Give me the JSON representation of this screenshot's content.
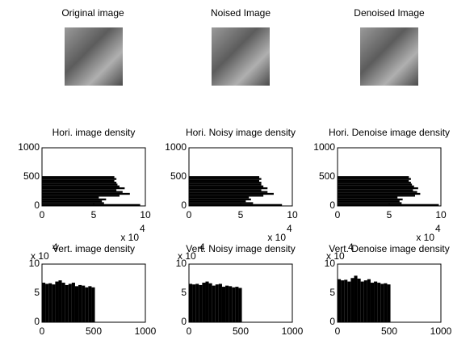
{
  "images": [
    {
      "title": "Original image"
    },
    {
      "title": "Noised Image"
    },
    {
      "title": "Denoised Image"
    }
  ],
  "chart_data": [
    {
      "type": "area",
      "orientation": "horizontal",
      "title": "Hori. image density",
      "color": "#000000",
      "x": [
        0,
        32,
        64,
        96,
        128,
        160,
        192,
        224,
        256,
        288,
        320,
        352,
        384,
        416,
        448,
        480
      ],
      "values": [
        95000,
        60000,
        58000,
        62000,
        55000,
        75000,
        85000,
        78000,
        72000,
        80000,
        75000,
        73000,
        72000,
        70000,
        72000,
        70000
      ],
      "xlim": [
        0,
        100000
      ],
      "xticks": [
        0,
        {
          "value": 50000,
          "label": "5"
        },
        {
          "value": 100000,
          "label": "10"
        }
      ],
      "ylim": [
        0,
        1000
      ],
      "yticks": [
        0,
        500,
        1000
      ],
      "multiplier": "x 10",
      "exponent": "4"
    },
    {
      "type": "area",
      "orientation": "horizontal",
      "title": "Hori. Noisy image density",
      "color": "#000000",
      "x": [
        0,
        32,
        64,
        96,
        128,
        160,
        192,
        224,
        256,
        288,
        320,
        352,
        384,
        416,
        448,
        480
      ],
      "values": [
        90000,
        62000,
        55000,
        60000,
        58000,
        72000,
        82000,
        76000,
        70000,
        76000,
        72000,
        70000,
        70000,
        68000,
        70000,
        68000
      ],
      "xlim": [
        0,
        100000
      ],
      "xticks": [
        0,
        {
          "value": 50000,
          "label": "5"
        },
        {
          "value": 100000,
          "label": "10"
        }
      ],
      "ylim": [
        0,
        1000
      ],
      "yticks": [
        0,
        500,
        1000
      ],
      "multiplier": "x 10",
      "exponent": "4"
    },
    {
      "type": "area",
      "orientation": "horizontal",
      "title": "Hori. Denoise image density",
      "color": "#000000",
      "x": [
        0,
        32,
        64,
        96,
        128,
        160,
        192,
        224,
        256,
        288,
        320,
        352,
        384,
        416,
        448,
        480
      ],
      "values": [
        98000,
        62000,
        60000,
        63000,
        58000,
        75000,
        80000,
        77000,
        73000,
        78000,
        74000,
        72000,
        71000,
        69000,
        71000,
        69000
      ],
      "xlim": [
        0,
        100000
      ],
      "xticks": [
        0,
        {
          "value": 50000,
          "label": "5"
        },
        {
          "value": 100000,
          "label": "10"
        }
      ],
      "ylim": [
        0,
        1000
      ],
      "yticks": [
        0,
        500,
        1000
      ],
      "multiplier": "x 10",
      "exponent": "4"
    },
    {
      "type": "area",
      "orientation": "vertical",
      "title": "Vert. image density",
      "color": "#000000",
      "x": [
        0,
        32,
        64,
        96,
        128,
        160,
        192,
        224,
        256,
        288,
        320,
        352,
        384,
        416,
        448,
        480
      ],
      "values": [
        68000,
        66000,
        67000,
        65000,
        70000,
        72000,
        68000,
        64000,
        66000,
        68000,
        62000,
        64000,
        63000,
        60000,
        62000,
        60000
      ],
      "xlim": [
        0,
        1000
      ],
      "xticks": [
        0,
        500,
        1000
      ],
      "ylim": [
        0,
        100000
      ],
      "yticks": [
        0,
        {
          "value": 50000,
          "label": "5"
        },
        {
          "value": 100000,
          "label": "10"
        }
      ],
      "multiplier": "x 10",
      "exponent": "4"
    },
    {
      "type": "area",
      "orientation": "vertical",
      "title": "Vert. Noisy image density",
      "color": "#000000",
      "x": [
        0,
        32,
        64,
        96,
        128,
        160,
        192,
        224,
        256,
        288,
        320,
        352,
        384,
        416,
        448,
        480
      ],
      "values": [
        66000,
        65000,
        66000,
        64000,
        68000,
        70000,
        67000,
        63000,
        65000,
        66000,
        61000,
        63000,
        62000,
        60000,
        61000,
        59000
      ],
      "xlim": [
        0,
        1000
      ],
      "xticks": [
        0,
        500,
        1000
      ],
      "ylim": [
        0,
        100000
      ],
      "yticks": [
        0,
        {
          "value": 50000,
          "label": "5"
        },
        {
          "value": 100000,
          "label": "10"
        }
      ],
      "multiplier": "x 10",
      "exponent": "4"
    },
    {
      "type": "area",
      "orientation": "vertical",
      "title": "Vert. Denoise image density",
      "color": "#000000",
      "x": [
        0,
        32,
        64,
        96,
        128,
        160,
        192,
        224,
        256,
        288,
        320,
        352,
        384,
        416,
        448,
        480
      ],
      "values": [
        74000,
        72000,
        73000,
        70000,
        76000,
        80000,
        75000,
        70000,
        72000,
        74000,
        68000,
        70000,
        68000,
        66000,
        67000,
        65000
      ],
      "xlim": [
        0,
        1000
      ],
      "xticks": [
        0,
        500,
        1000
      ],
      "ylim": [
        0,
        100000
      ],
      "yticks": [
        0,
        {
          "value": 50000,
          "label": "5"
        },
        {
          "value": 100000,
          "label": "10"
        }
      ],
      "multiplier": "x 10",
      "exponent": "4"
    }
  ]
}
